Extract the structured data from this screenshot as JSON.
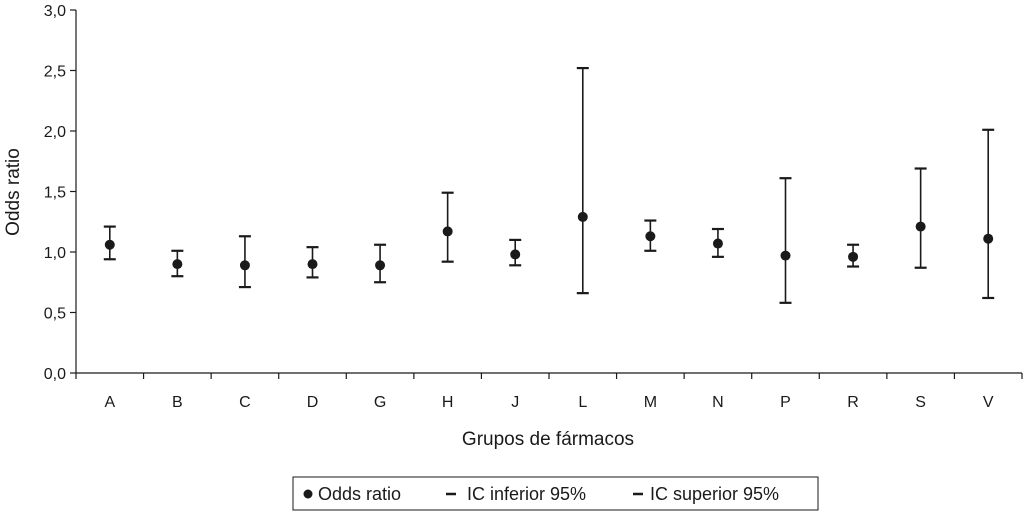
{
  "chart_data": {
    "type": "scatter",
    "xlabel": "Grupos de fármacos",
    "ylabel": "Odds ratio",
    "ylim": [
      0,
      3.0
    ],
    "yticks": [
      "0,0",
      "0,5",
      "1,0",
      "1,5",
      "2,0",
      "2,5",
      "3,0"
    ],
    "ytick_values": [
      0,
      0.5,
      1.0,
      1.5,
      2.0,
      2.5,
      3.0
    ],
    "grid": false,
    "legend_position": "bottom",
    "categories": [
      "A",
      "B",
      "C",
      "D",
      "G",
      "H",
      "J",
      "L",
      "M",
      "N",
      "P",
      "R",
      "S",
      "V"
    ],
    "series": [
      {
        "name": "Odds ratio",
        "values": [
          1.06,
          0.9,
          0.89,
          0.9,
          0.89,
          1.17,
          0.98,
          1.29,
          1.13,
          1.07,
          0.97,
          0.96,
          1.21,
          1.11
        ]
      },
      {
        "name": "IC inferior 95%",
        "values": [
          0.94,
          0.8,
          0.71,
          0.79,
          0.75,
          0.92,
          0.89,
          0.66,
          1.01,
          0.96,
          0.58,
          0.88,
          0.87,
          0.62
        ]
      },
      {
        "name": "IC superior 95%",
        "values": [
          1.21,
          1.01,
          1.13,
          1.04,
          1.06,
          1.49,
          1.1,
          2.52,
          1.26,
          1.19,
          1.61,
          1.06,
          1.69,
          2.01
        ]
      }
    ],
    "colors": {
      "marker": "#1a1a1a",
      "axis": "#1a1a1a"
    }
  }
}
